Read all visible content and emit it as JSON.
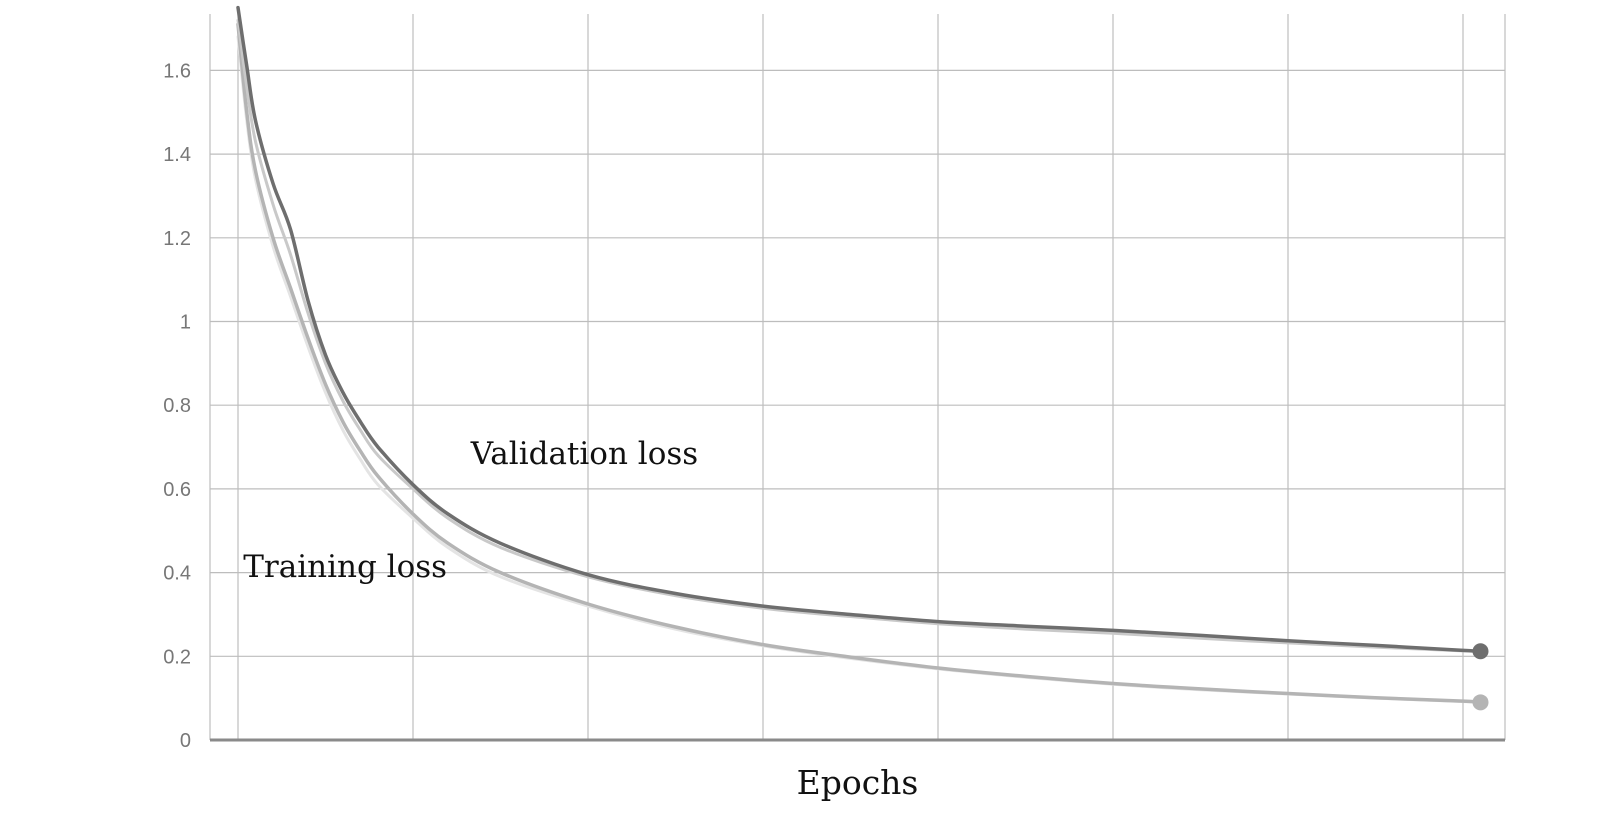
{
  "chart_data": {
    "type": "line",
    "title": "",
    "xlabel": "Epochs",
    "ylabel": "",
    "xlim": [
      0,
      7.1
    ],
    "ylim": [
      0,
      1.74
    ],
    "x_ticks": [
      0,
      1,
      2,
      3,
      4,
      5,
      6,
      7
    ],
    "y_ticks": [
      0,
      0.2,
      0.4,
      0.6,
      0.8,
      1,
      1.2,
      1.4,
      1.6
    ],
    "y_tick_labels": [
      "0",
      "0.2",
      "0.4",
      "0.6",
      "0.8",
      "1",
      "1.2",
      "1.4",
      "1.6"
    ],
    "grid": true,
    "annotations": [
      {
        "text": "Validation loss",
        "x": 1.33,
        "y": 0.66
      },
      {
        "text": "Training loss",
        "x": 0.03,
        "y": 0.39
      }
    ],
    "series": [
      {
        "color": "#e4e4e4",
        "width": 3,
        "end_marker": false,
        "x": [
          0,
          0.05,
          0.1,
          0.2,
          0.3,
          0.4,
          0.5,
          0.6,
          0.7,
          0.8,
          1.0,
          1.2,
          1.5,
          2.0,
          2.5,
          3.0,
          3.5,
          4.0,
          4.5,
          5.0,
          5.5,
          6.0,
          6.5,
          7.0,
          7.1
        ],
        "y": [
          1.68,
          1.48,
          1.34,
          1.18,
          1.06,
          0.94,
          0.83,
          0.74,
          0.67,
          0.61,
          0.53,
          0.46,
          0.39,
          0.32,
          0.265,
          0.225,
          0.195,
          0.17,
          0.15,
          0.133,
          0.12,
          0.11,
          0.1,
          0.092,
          0.09
        ]
      },
      {
        "color": "#b4b4b4",
        "width": 3.5,
        "end_marker": true,
        "x": [
          0,
          0.05,
          0.1,
          0.2,
          0.3,
          0.4,
          0.5,
          0.6,
          0.7,
          0.8,
          1.0,
          1.2,
          1.5,
          2.0,
          2.5,
          3.0,
          3.5,
          4.0,
          4.5,
          5.0,
          5.5,
          6.0,
          6.5,
          7.0,
          7.1
        ],
        "y": [
          1.71,
          1.5,
          1.36,
          1.2,
          1.08,
          0.96,
          0.85,
          0.76,
          0.69,
          0.63,
          0.54,
          0.47,
          0.4,
          0.325,
          0.27,
          0.228,
          0.198,
          0.172,
          0.152,
          0.135,
          0.122,
          0.111,
          0.101,
          0.093,
          0.09
        ]
      },
      {
        "color": "#c9c9c9",
        "width": 3,
        "end_marker": false,
        "x": [
          0,
          0.05,
          0.1,
          0.2,
          0.3,
          0.4,
          0.5,
          0.6,
          0.7,
          0.8,
          1.0,
          1.2,
          1.5,
          2.0,
          2.5,
          3.0,
          3.5,
          4.0,
          4.5,
          5.0,
          5.5,
          6.0,
          6.5,
          7.0,
          7.1
        ],
        "y": [
          1.72,
          1.56,
          1.43,
          1.28,
          1.16,
          1.02,
          0.9,
          0.81,
          0.74,
          0.68,
          0.6,
          0.53,
          0.46,
          0.39,
          0.345,
          0.315,
          0.295,
          0.278,
          0.265,
          0.255,
          0.243,
          0.232,
          0.222,
          0.213,
          0.212
        ]
      },
      {
        "color": "#6e6e6e",
        "width": 3.5,
        "end_marker": true,
        "x": [
          0,
          0.05,
          0.1,
          0.2,
          0.3,
          0.4,
          0.5,
          0.6,
          0.7,
          0.8,
          1.0,
          1.2,
          1.5,
          2.0,
          2.5,
          3.0,
          3.5,
          4.0,
          4.5,
          5.0,
          5.5,
          6.0,
          6.5,
          7.0,
          7.1
        ],
        "y": [
          1.75,
          1.61,
          1.48,
          1.33,
          1.22,
          1.05,
          0.92,
          0.83,
          0.76,
          0.7,
          0.61,
          0.54,
          0.47,
          0.395,
          0.35,
          0.32,
          0.3,
          0.283,
          0.272,
          0.262,
          0.25,
          0.237,
          0.226,
          0.214,
          0.212
        ]
      }
    ]
  }
}
